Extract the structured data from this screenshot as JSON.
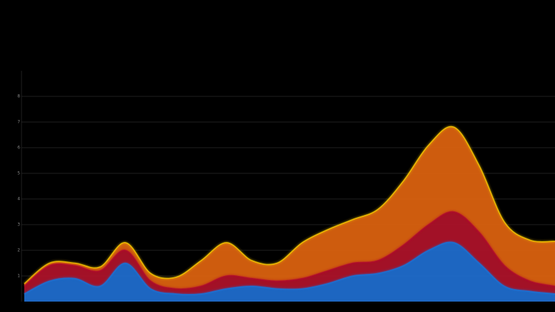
{
  "chart_data": {
    "type": "stacked-area",
    "categories": [
      null,
      null,
      null,
      null,
      null,
      null,
      null,
      null,
      null,
      null,
      null,
      null,
      null,
      null,
      null,
      null,
      null,
      null,
      null,
      null,
      null,
      null
    ],
    "ylim": [
      0,
      9
    ],
    "yticks": [
      1,
      2,
      3,
      4,
      5,
      6,
      7,
      8
    ],
    "grid": true,
    "series": [
      {
        "color": "#1f6fd1",
        "values": [
          0.3,
          0.8,
          0.9,
          0.6,
          1.5,
          0.5,
          0.3,
          0.3,
          0.5,
          0.6,
          0.5,
          0.5,
          0.7,
          1.0,
          1.1,
          1.4,
          2.0,
          2.3,
          1.5,
          0.6,
          0.4,
          0.3
        ]
      },
      {
        "color": "#b0122a",
        "values": [
          0.3,
          0.6,
          0.5,
          0.6,
          0.5,
          0.3,
          0.2,
          0.3,
          0.5,
          0.3,
          0.3,
          0.4,
          0.5,
          0.5,
          0.5,
          0.8,
          1.0,
          1.2,
          1.2,
          0.8,
          0.4,
          0.3
        ]
      },
      {
        "color": "#e0640f",
        "values": [
          0.1,
          0.1,
          0.1,
          0.15,
          0.3,
          0.3,
          0.45,
          1.0,
          1.3,
          0.7,
          0.7,
          1.4,
          1.6,
          1.7,
          2.0,
          2.5,
          3.1,
          3.3,
          2.6,
          1.7,
          1.6,
          1.75
        ]
      }
    ]
  }
}
